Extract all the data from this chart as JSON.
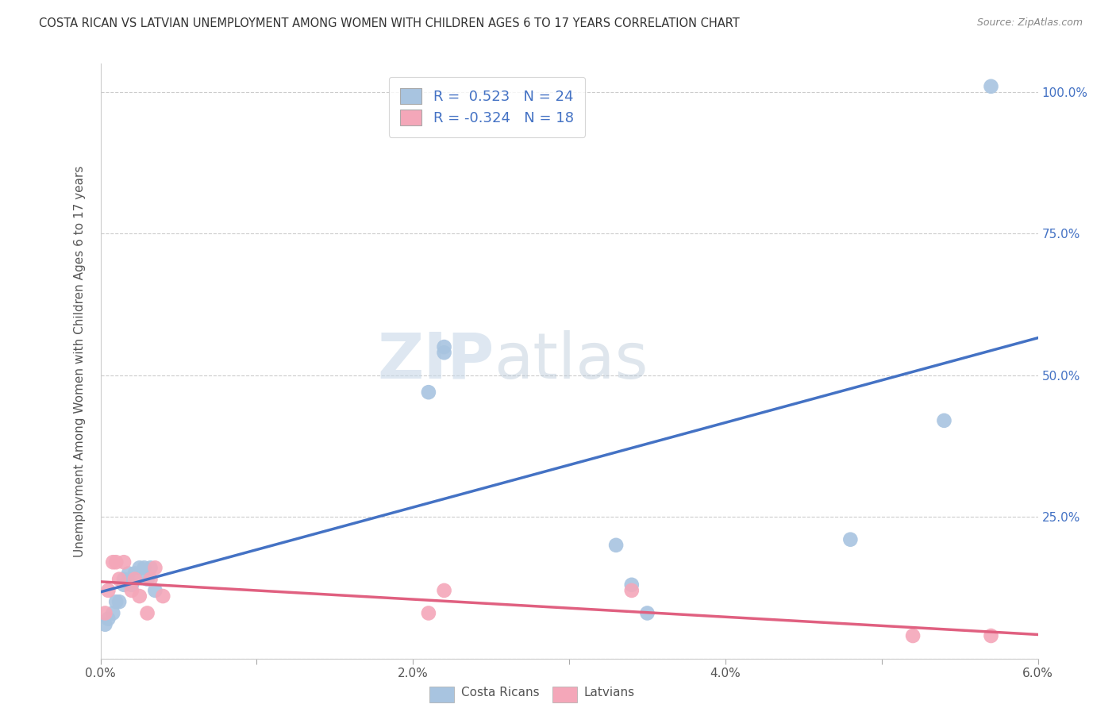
{
  "title": "COSTA RICAN VS LATVIAN UNEMPLOYMENT AMONG WOMEN WITH CHILDREN AGES 6 TO 17 YEARS CORRELATION CHART",
  "source": "Source: ZipAtlas.com",
  "ylabel": "Unemployment Among Women with Children Ages 6 to 17 years",
  "legend_r": [
    "R =  0.523",
    "R = -0.324"
  ],
  "legend_n": [
    "N = 24",
    "N = 18"
  ],
  "xlim": [
    0.0,
    0.06
  ],
  "ylim": [
    0.0,
    1.05
  ],
  "xticks": [
    0.0,
    0.01,
    0.02,
    0.03,
    0.04,
    0.05,
    0.06
  ],
  "xticklabels": [
    "0.0%",
    "",
    "2.0%",
    "",
    "4.0%",
    "",
    "6.0%"
  ],
  "yticks": [
    0.0,
    0.25,
    0.5,
    0.75,
    1.0
  ],
  "right_yticklabels": [
    "",
    "25.0%",
    "50.0%",
    "75.0%",
    "100.0%"
  ],
  "right_ytick_color": "#4472c4",
  "grid_color": "#cccccc",
  "costa_rican_color": "#a8c4e0",
  "costa_rican_line_color": "#4472c4",
  "latvian_color": "#f4a7b9",
  "latvian_line_color": "#e06080",
  "watermark_zip": "ZIP",
  "watermark_atlas": "atlas",
  "costa_rican_x": [
    0.0003,
    0.0005,
    0.0008,
    0.001,
    0.0012,
    0.0015,
    0.0015,
    0.0018,
    0.002,
    0.0022,
    0.0025,
    0.0028,
    0.003,
    0.0032,
    0.0035,
    0.021,
    0.022,
    0.022,
    0.033,
    0.034,
    0.035,
    0.048,
    0.054,
    0.057
  ],
  "costa_rican_y": [
    0.06,
    0.07,
    0.08,
    0.1,
    0.1,
    0.13,
    0.14,
    0.15,
    0.13,
    0.15,
    0.16,
    0.16,
    0.14,
    0.16,
    0.12,
    0.47,
    0.54,
    0.55,
    0.2,
    0.13,
    0.08,
    0.21,
    0.42,
    1.01
  ],
  "latvian_x": [
    0.0003,
    0.0005,
    0.0008,
    0.001,
    0.0012,
    0.0015,
    0.002,
    0.0022,
    0.0025,
    0.003,
    0.0032,
    0.0035,
    0.004,
    0.021,
    0.022,
    0.034,
    0.052,
    0.057
  ],
  "latvian_y": [
    0.08,
    0.12,
    0.17,
    0.17,
    0.14,
    0.17,
    0.12,
    0.14,
    0.11,
    0.08,
    0.14,
    0.16,
    0.11,
    0.08,
    0.12,
    0.12,
    0.04,
    0.04
  ],
  "marker_size": 180,
  "bottom_legend_labels": [
    "Costa Ricans",
    "Latvians"
  ],
  "bottom_legend_colors": [
    "#a8c4e0",
    "#f4a7b9"
  ]
}
